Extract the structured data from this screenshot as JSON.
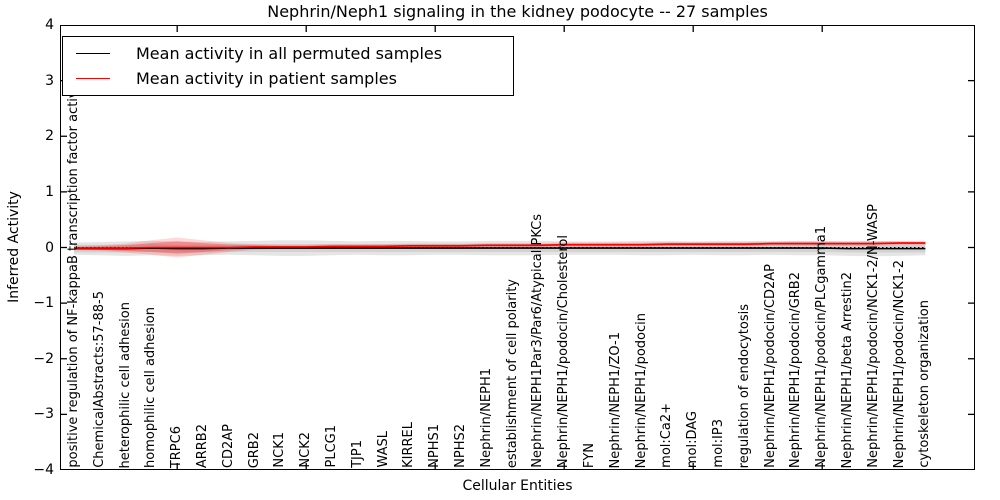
{
  "chart_data": {
    "type": "line",
    "title": "Nephrin/Neph1 signaling in the kidney podocyte -- 27 samples",
    "xlabel": "Cellular Entities",
    "ylabel": "Inferred Activity",
    "ylim": [
      -4,
      4
    ],
    "yticks": [
      4,
      3,
      2,
      1,
      0,
      -1,
      -2,
      -3,
      -4
    ],
    "y_tick_labels": [
      "4",
      "3",
      "2",
      "1",
      "0",
      "−1",
      "−2",
      "−3",
      "−4"
    ],
    "grid": false,
    "legend_position": "upper left",
    "x_major_tick_indices": [
      4,
      9,
      14,
      19,
      24,
      29
    ],
    "zero_line": 0,
    "categories": [
      "positive regulation of NF-kappaB transcription factor activity",
      "ChemicalAbstracts:57-88-5",
      "heterophilic cell adhesion",
      "homophilic cell adhesion",
      "TRPC6",
      "ARRB2",
      "CD2AP",
      "GRB2",
      "NCK1",
      "NCK2",
      "PLCG1",
      "TJP1",
      "WASL",
      "KIRREL",
      "NPHS1",
      "NPHS2",
      "Nephrin/NEPH1",
      "establishment of cell polarity",
      "Nephrin/NEPH1Par3/Par6/Atypical PKCs",
      "Nephrin/NEPH1/podocin/Cholesterol",
      "FYN",
      "Nephrin/NEPH1/ZO-1",
      "Nephrin/NEPH1/podocin",
      "mol:Ca2+",
      "mol:DAG",
      "mol:IP3",
      "regulation of endocytosis",
      "Nephrin/NEPH1/podocin/CD2AP",
      "Nephrin/NEPH1/podocin/GRB2",
      "Nephrin/NEPH1/podocin/PLCgamma1",
      "Nephrin/NEPH1/beta Arrestin2",
      "Nephrin/NEPH1/podocin/NCK1-2/N-WASP",
      "Nephrin/NEPH1/podocin/NCK1-2",
      "cytoskeleton organization"
    ],
    "series": [
      {
        "name": "Mean activity in all permuted samples",
        "color": "#000000",
        "values": [
          -0.02,
          -0.02,
          -0.02,
          -0.01,
          -0.02,
          -0.02,
          -0.01,
          -0.01,
          -0.01,
          -0.01,
          -0.01,
          -0.01,
          -0.01,
          -0.01,
          -0.01,
          -0.01,
          -0.01,
          -0.01,
          -0.01,
          -0.01,
          -0.01,
          -0.01,
          -0.01,
          -0.01,
          -0.01,
          -0.01,
          -0.01,
          -0.01,
          -0.01,
          -0.01,
          -0.02,
          -0.02,
          -0.02,
          -0.02
        ]
      },
      {
        "name": "Mean activity in patient samples",
        "color": "#ff0000",
        "values": [
          -0.01,
          -0.01,
          -0.01,
          0.0,
          0.0,
          0.0,
          0.0,
          0.01,
          0.01,
          0.01,
          0.02,
          0.02,
          0.02,
          0.03,
          0.03,
          0.03,
          0.04,
          0.04,
          0.04,
          0.05,
          0.05,
          0.05,
          0.05,
          0.06,
          0.06,
          0.06,
          0.06,
          0.07,
          0.07,
          0.07,
          0.07,
          0.07,
          0.08,
          0.08
        ]
      }
    ],
    "bands": [
      {
        "name": "permuted-std-band-outer",
        "center_series": 0,
        "color": "rgba(0,0,0,0.10)",
        "half_width": [
          0.11,
          0.12,
          0.13,
          0.13,
          0.13,
          0.12,
          0.12,
          0.13,
          0.14,
          0.14,
          0.13,
          0.12,
          0.13,
          0.13,
          0.12,
          0.12,
          0.13,
          0.13,
          0.13,
          0.12,
          0.12,
          0.12,
          0.13,
          0.13,
          0.12,
          0.13,
          0.13,
          0.12,
          0.13,
          0.13,
          0.13,
          0.14,
          0.13,
          0.12
        ]
      },
      {
        "name": "permuted-std-band-inner",
        "center_series": 0,
        "color": "rgba(0,0,0,0.08)",
        "half_width": [
          0.07,
          0.07,
          0.07,
          0.07,
          0.07,
          0.07,
          0.07,
          0.07,
          0.07,
          0.07,
          0.07,
          0.07,
          0.07,
          0.07,
          0.07,
          0.07,
          0.07,
          0.07,
          0.07,
          0.07,
          0.07,
          0.07,
          0.07,
          0.07,
          0.07,
          0.07,
          0.07,
          0.07,
          0.07,
          0.07,
          0.07,
          0.07,
          0.07,
          0.07
        ]
      },
      {
        "name": "patient-std-band-outer",
        "center_series": 1,
        "color": "rgba(255,0,0,0.15)",
        "half_width": [
          0.04,
          0.05,
          0.08,
          0.13,
          0.18,
          0.13,
          0.08,
          0.05,
          0.04,
          0.04,
          0.04,
          0.04,
          0.04,
          0.04,
          0.04,
          0.04,
          0.04,
          0.04,
          0.04,
          0.04,
          0.04,
          0.04,
          0.04,
          0.04,
          0.04,
          0.04,
          0.04,
          0.04,
          0.04,
          0.04,
          0.04,
          0.04,
          0.04,
          0.04
        ]
      },
      {
        "name": "patient-std-band-inner",
        "center_series": 1,
        "color": "rgba(255,0,0,0.28)",
        "half_width": [
          0.02,
          0.03,
          0.05,
          0.08,
          0.11,
          0.08,
          0.05,
          0.03,
          0.02,
          0.02,
          0.02,
          0.02,
          0.02,
          0.02,
          0.02,
          0.02,
          0.02,
          0.02,
          0.02,
          0.02,
          0.02,
          0.02,
          0.02,
          0.02,
          0.02,
          0.02,
          0.02,
          0.02,
          0.02,
          0.02,
          0.02,
          0.02,
          0.02,
          0.02
        ]
      }
    ]
  },
  "legend": {
    "items": [
      {
        "label": "Mean activity in all permuted samples",
        "color": "#000000"
      },
      {
        "label": "Mean activity in patient samples",
        "color": "#ff0000"
      }
    ]
  }
}
